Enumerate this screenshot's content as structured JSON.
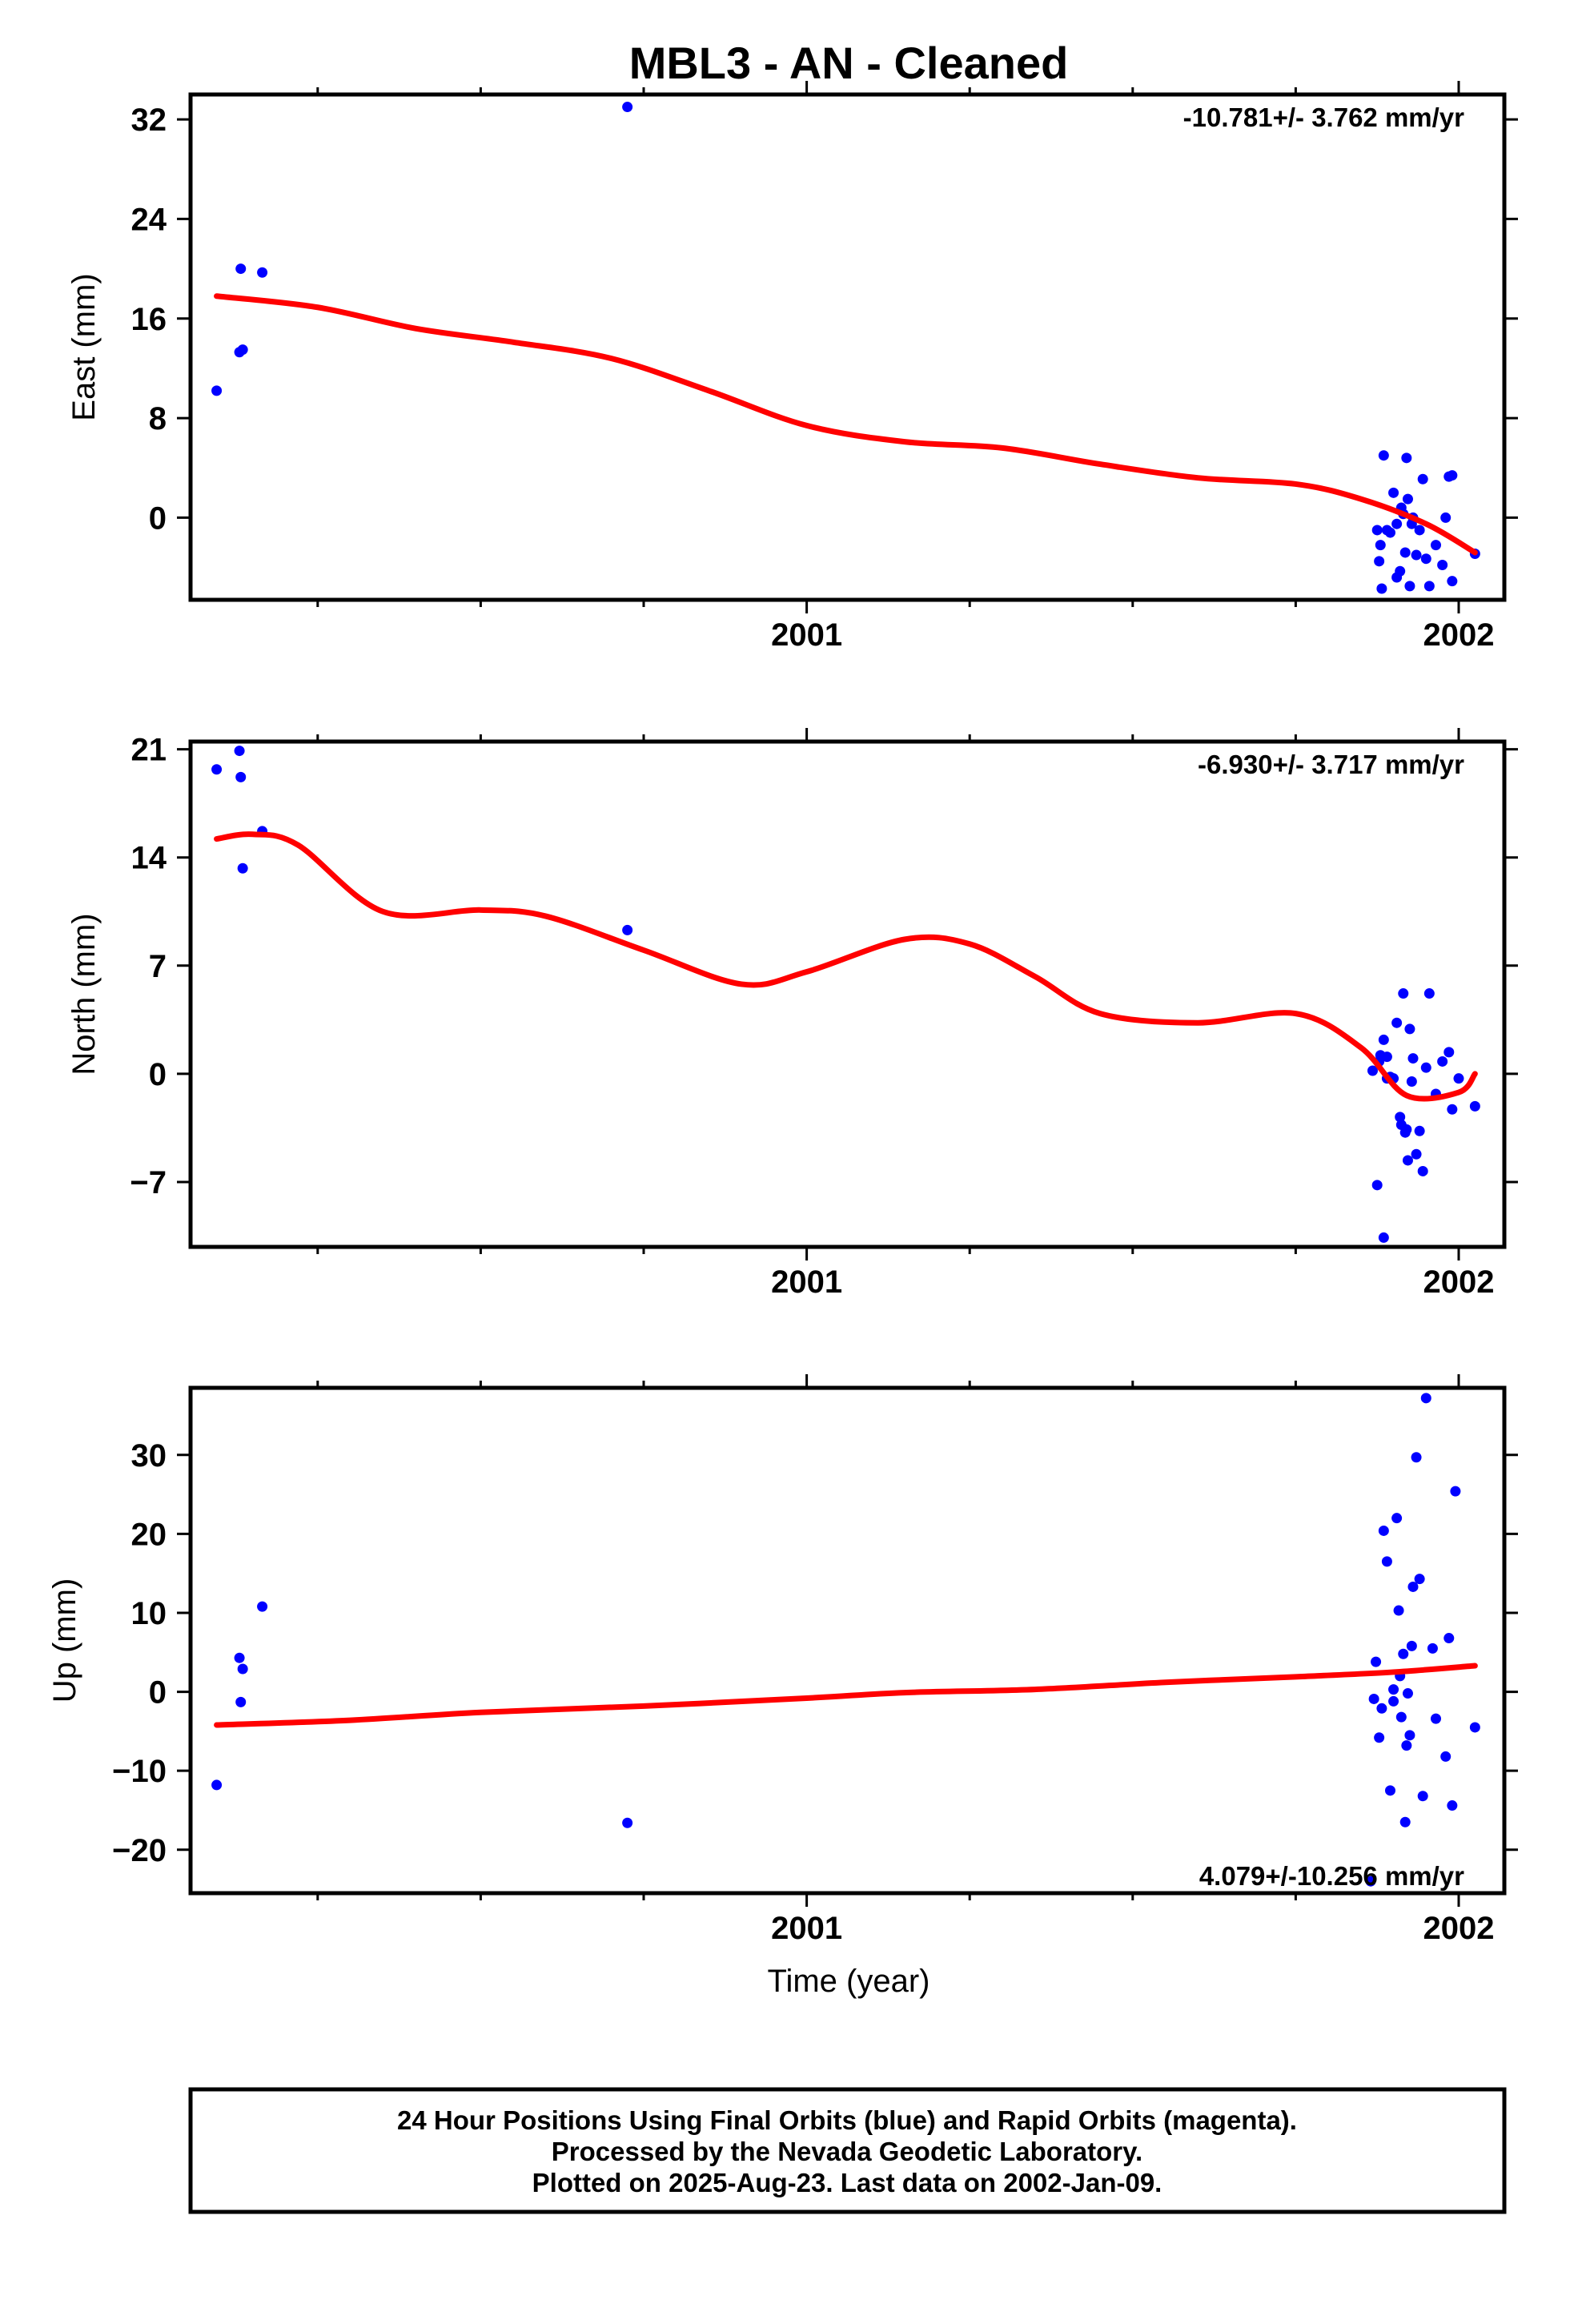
{
  "title": "MBL3  - AN - Cleaned",
  "colors": {
    "points": "#0000ff",
    "fit": "#ff0000",
    "frame": "#000000"
  },
  "xlabel": "Time (year)",
  "footer": {
    "line1": "24 Hour Positions Using Final Orbits (blue) and Rapid Orbits (magenta).",
    "line2": "Processed by the Nevada Geodetic Laboratory.",
    "line3": "Plotted on 2025-Aug-23. Last data on 2002-Jan-09."
  },
  "chart_data": [
    {
      "type": "scatter",
      "ylabel": "East (mm)",
      "rate": "-10.781+/- 3.762 mm/yr",
      "xlim": [
        2000.055,
        2002.07
      ],
      "ylim": [
        -6.6,
        34
      ],
      "xticks": [
        2001,
        2002
      ],
      "yticks": [
        0,
        8,
        16,
        24,
        32
      ],
      "series": [
        {
          "kind": "points",
          "x": [
            2000.095,
            2000.13,
            2000.132,
            2000.135,
            2000.165,
            2000.725,
            2001.875,
            2001.878,
            2001.88,
            2001.882,
            2001.885,
            2001.89,
            2001.895,
            2001.9,
            2001.905,
            2001.905,
            2001.91,
            2001.912,
            2001.915,
            2001.918,
            2001.92,
            2001.922,
            2001.925,
            2001.928,
            2001.93,
            2001.935,
            2001.94,
            2001.945,
            2001.95,
            2001.955,
            2001.965,
            2001.975,
            2001.98,
            2001.985,
            2001.99,
            2001.99,
            2002.025
          ],
          "y": [
            10.2,
            13.3,
            20,
            13.5,
            19.7,
            33,
            -1,
            -3.5,
            -2.2,
            -5.7,
            5,
            -1,
            -1.2,
            2,
            -0.5,
            -4.8,
            -4.3,
            0.8,
            0.3,
            -2.8,
            4.8,
            1.5,
            -5.5,
            -0.5,
            0,
            -3,
            -1,
            3.1,
            -3.3,
            -5.5,
            -2.2,
            -3.8,
            0,
            3.3,
            -5.1,
            3.4,
            -2.9
          ]
        },
        {
          "kind": "fit",
          "x": [
            2000.095,
            2000.25,
            2000.4,
            2000.55,
            2000.7,
            2000.85,
            2001.0,
            2001.15,
            2001.3,
            2001.45,
            2001.6,
            2001.75,
            2001.85,
            2001.95,
            2002.025
          ],
          "y": [
            17.8,
            16.9,
            15.2,
            14.1,
            12.8,
            10.2,
            7.4,
            6.1,
            5.6,
            4.3,
            3.2,
            2.7,
            1.5,
            -0.5,
            -2.8
          ]
        }
      ]
    },
    {
      "type": "scatter",
      "ylabel": "North (mm)",
      "rate": "-6.930+/- 3.717 mm/yr",
      "xlim": [
        2000.055,
        2002.07
      ],
      "ylim": [
        -11.2,
        21.5
      ],
      "xticks": [
        2001,
        2002
      ],
      "yticks": [
        -7,
        0,
        7,
        14,
        21
      ],
      "series": [
        {
          "kind": "points",
          "x": [
            2000.095,
            2000.13,
            2000.132,
            2000.135,
            2000.165,
            2000.725,
            2001.868,
            2001.875,
            2001.878,
            2001.88,
            2001.885,
            2001.885,
            2001.89,
            2001.89,
            2001.895,
            2001.9,
            2001.905,
            2001.91,
            2001.912,
            2001.915,
            2001.918,
            2001.92,
            2001.922,
            2001.925,
            2001.928,
            2001.93,
            2001.935,
            2001.94,
            2001.945,
            2001.95,
            2001.955,
            2001.965,
            2001.975,
            2001.985,
            2001.99,
            2002.0,
            2002.025
          ],
          "y": [
            19.7,
            20.9,
            19.2,
            13.3,
            15.7,
            9.3,
            0.2,
            -7.2,
            0.8,
            1.2,
            2.2,
            -10.6,
            -0.3,
            1.1,
            -0.2,
            -0.3,
            3.3,
            -2.8,
            -3.3,
            5.2,
            -3.8,
            -3.6,
            -5.6,
            2.9,
            -0.5,
            1.0,
            -5.2,
            -3.7,
            -6.3,
            0.4,
            5.2,
            -1.3,
            0.8,
            1.4,
            -2.3,
            -0.3,
            -2.1
          ]
        },
        {
          "kind": "fit",
          "x": [
            2000.095,
            2000.15,
            2000.22,
            2000.35,
            2000.5,
            2000.6,
            2000.75,
            2000.9,
            2001.0,
            2001.15,
            2001.25,
            2001.35,
            2001.45,
            2001.6,
            2001.75,
            2001.85,
            2001.92,
            2002.0,
            2002.025
          ],
          "y": [
            15.2,
            15.5,
            14.8,
            10.5,
            10.6,
            10.2,
            8.0,
            5.8,
            6.6,
            8.7,
            8.4,
            6.3,
            3.9,
            3.3,
            3.9,
            1.7,
            -1.4,
            -1.2,
            0.0
          ]
        }
      ]
    },
    {
      "type": "scatter",
      "ylabel": "Up (mm)",
      "rate": "4.079+/-10.256 mm/yr",
      "xlim": [
        2000.055,
        2002.07
      ],
      "ylim": [
        -25.5,
        38.5
      ],
      "xticks": [
        2001,
        2002
      ],
      "yticks": [
        -20,
        -10,
        0,
        10,
        20,
        30
      ],
      "series": [
        {
          "kind": "points",
          "x": [
            2000.095,
            2000.13,
            2000.132,
            2000.135,
            2000.165,
            2000.725,
            2001.865,
            2001.87,
            2001.873,
            2001.878,
            2001.882,
            2001.885,
            2001.89,
            2001.895,
            2001.9,
            2001.9,
            2001.905,
            2001.908,
            2001.91,
            2001.912,
            2001.915,
            2001.918,
            2001.92,
            2001.922,
            2001.925,
            2001.928,
            2001.93,
            2001.935,
            2001.94,
            2001.945,
            2001.95,
            2001.96,
            2001.965,
            2001.98,
            2001.985,
            2001.99,
            2001.995,
            2002.025
          ],
          "y": [
            -11.8,
            4.3,
            -1.3,
            2.9,
            10.8,
            -16.6,
            -24,
            -0.9,
            3.8,
            -5.8,
            -2.1,
            20.4,
            16.5,
            -12.5,
            0.3,
            -1.2,
            22,
            10.3,
            2.0,
            -3.2,
            4.8,
            -16.5,
            -6.8,
            -0.2,
            -5.5,
            5.8,
            13.3,
            29.7,
            14.3,
            -13.2,
            37.2,
            5.5,
            -3.4,
            -8.2,
            6.8,
            -14.4,
            25.4,
            -4.5
          ]
        },
        {
          "kind": "fit",
          "x": [
            2000.095,
            2000.3,
            2000.5,
            2000.75,
            2001.0,
            2001.15,
            2001.35,
            2001.55,
            2001.75,
            2001.9,
            2002.025
          ],
          "y": [
            -4.2,
            -3.6,
            -2.6,
            -1.8,
            -0.8,
            -0.1,
            0.3,
            1.2,
            1.9,
            2.5,
            3.3
          ]
        }
      ]
    }
  ]
}
